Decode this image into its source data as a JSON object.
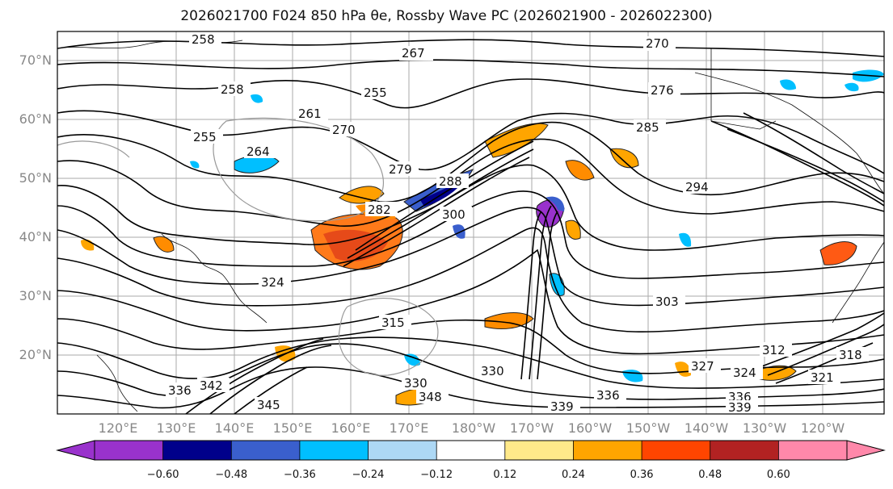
{
  "title": "2026021700 F024 850 hPa θe, Rossby Wave PC (2026021900 - 2026022300)",
  "lat_labels": [
    "70°N",
    "60°N",
    "50°N",
    "40°N",
    "30°N",
    "20°N"
  ],
  "lon_labels": [
    "120°E",
    "130°E",
    "140°E",
    "150°E",
    "160°E",
    "170°E",
    "180°W",
    "170°W",
    "160°W",
    "150°W",
    "140°W",
    "130°W",
    "120°W"
  ],
  "contour_labels": [
    "258",
    "267",
    "270",
    "258",
    "255",
    "261",
    "270",
    "255",
    "264",
    "279",
    "276",
    "285",
    "282",
    "288",
    "300",
    "294",
    "303",
    "315",
    "312",
    "318",
    "321",
    "324",
    "327",
    "330",
    "336",
    "339",
    "342",
    "345",
    "348",
    "330",
    "336",
    "339",
    "336",
    "324"
  ],
  "colorbar": {
    "ticks": [
      "−0.60",
      "−0.48",
      "−0.36",
      "−0.24",
      "−0.12",
      "0.12",
      "0.24",
      "0.36",
      "0.48",
      "0.60"
    ],
    "colors": [
      "#9932cc",
      "#00008b",
      "#3a5fcd",
      "#00bfff",
      "#add8f5",
      "#ffffff",
      "#ffe98a",
      "#ffa500",
      "#ff4500",
      "#b22222",
      "#ff88aa",
      "#ff88aa"
    ],
    "under_color": "#9932cc",
    "over_color": "#ff88aa"
  }
}
